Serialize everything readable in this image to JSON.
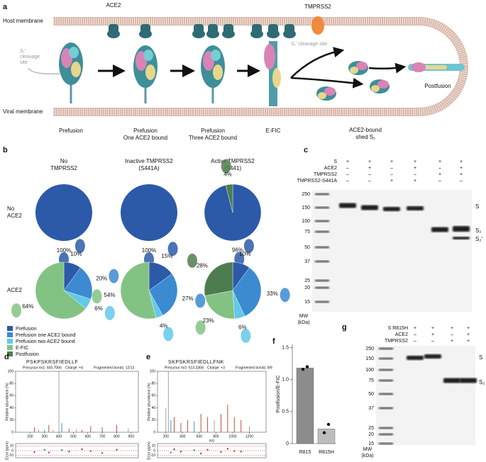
{
  "panel_a": {
    "letter": "a",
    "host_membrane": "Host membrane",
    "viral_membrane": "Viral membrane",
    "ace2": "ACE2",
    "tmprss2": "TMPRSS2",
    "cleavage_site_left": [
      "S₁′",
      "cleavage",
      "site"
    ],
    "cleavage_site_right": "S₁′ cleavage site",
    "states": [
      [
        "Prefusion"
      ],
      [
        "Prefusion",
        "One ACE2 bound"
      ],
      [
        "Prefusion",
        "Three ACE2 bound"
      ],
      [
        "E-FIC"
      ],
      [
        "ACE2-bound",
        "shed S₁"
      ],
      [
        "Postfusion"
      ]
    ]
  },
  "panel_b": {
    "letter": "b",
    "columns": [
      [
        "No",
        "TMPRSS2"
      ],
      [
        "Inactive TMPRSS2",
        "(S441A)"
      ],
      [
        "Active TMPRSS2",
        "(S441)"
      ]
    ],
    "rows": [
      [
        "No",
        "ACE2"
      ],
      [
        "ACE2"
      ]
    ],
    "legend": [
      {
        "name": "Prefusion",
        "color": "#2c5aa8"
      },
      {
        "name": "Prefusion one ACE2 bound",
        "color": "#3c8ad0"
      },
      {
        "name": "Prefusion two ACE2 bound",
        "color": "#62c9ea"
      },
      {
        "name": "E-FIC",
        "color": "#82c383"
      },
      {
        "name": "Postfusion",
        "color": "#4d7d4f"
      }
    ],
    "pies": [
      [
        {
          "values": [
            100,
            null,
            null,
            null,
            null
          ],
          "value_labels": [
            "100%",
            null,
            null,
            null,
            null
          ]
        },
        {
          "values": [
            100,
            null,
            null,
            null,
            null
          ],
          "value_labels": [
            "100%",
            null,
            null,
            null,
            null
          ]
        },
        {
          "values": [
            96,
            null,
            null,
            null,
            4
          ],
          "value_labels": [
            "96%",
            null,
            null,
            null,
            "4%"
          ]
        }
      ],
      [
        {
          "values": [
            10,
            20,
            6,
            64,
            null
          ],
          "value_labels": [
            "10%",
            "20%",
            "6%",
            "64%",
            null
          ]
        },
        {
          "values": [
            15,
            27,
            4,
            54,
            null
          ],
          "value_labels": [
            "15%",
            "27%",
            "4%",
            "54%",
            null
          ]
        },
        {
          "values": [
            10,
            33,
            6,
            23,
            28
          ],
          "value_labels": [
            "10%",
            "33%",
            "6%",
            "23%",
            "28%"
          ]
        }
      ]
    ]
  },
  "panel_c": {
    "letter": "c",
    "rows": [
      {
        "label": "S",
        "signs": [
          "+",
          "+",
          "+",
          "+",
          "+",
          "+"
        ]
      },
      {
        "label": "ACE2",
        "signs": [
          "–",
          "+",
          "–",
          "+",
          "–",
          "+"
        ]
      },
      {
        "label": "TMPRSS2",
        "signs": [
          "–",
          "–",
          "–",
          "–",
          "+",
          "+"
        ]
      },
      {
        "label": "TMPRSS2-S441A",
        "signs": [
          "–",
          "–",
          "+",
          "+",
          "–",
          "–"
        ]
      }
    ],
    "mw": [
      250,
      150,
      100,
      75,
      50,
      37,
      25,
      20,
      15
    ],
    "mw_label": [
      "MW",
      "(kDa)"
    ],
    "bands": [
      "S",
      "S₂",
      "S₂′"
    ]
  },
  "panel_d": {
    "letter": "d",
    "sequence": "PSKPSKRSFIEDLLF",
    "precursor": "Precursor m/z: 600.7066",
    "charge": "Charge: +4",
    "bonds": "Fragmented bonds: 12/13",
    "y_label": "Relative abundance (%)",
    "err_label": "Error (ppm)",
    "xlim": [
      100,
      950
    ],
    "xticks": [
      200,
      300,
      400,
      500,
      600,
      700,
      800,
      900
    ],
    "ylim": [
      0,
      100
    ],
    "yticks": [
      0,
      20,
      40,
      60,
      80,
      100
    ],
    "err_ylim": [
      -15,
      15
    ],
    "err_yticks": [
      10,
      0,
      -10
    ],
    "peaks_x": [
      230,
      260,
      300,
      330,
      360,
      400,
      420,
      470,
      520,
      560,
      620,
      700,
      800,
      880
    ],
    "peaks_y": [
      8,
      5,
      4,
      12,
      4,
      100,
      15,
      6,
      5,
      4,
      10,
      8,
      12,
      6
    ],
    "peak_colors": [
      "#c0392b",
      "#999",
      "#2e86c1",
      "#c0392b",
      "#999",
      "#999",
      "#2e86c1",
      "#c0392b",
      "#999",
      "#c0392b",
      "#c0392b",
      "#c0392b",
      "#c0392b",
      "#999"
    ],
    "err_x": [
      230,
      300,
      330,
      420,
      470,
      560,
      620,
      700,
      800
    ],
    "err_y": [
      -3,
      2,
      -4,
      1,
      -2,
      3,
      -1,
      -5,
      2
    ]
  },
  "panel_e": {
    "letter": "e",
    "sequence": "SKPSKRSFIEDLLFNK",
    "precursor": "Precursor m/z: 613.3368",
    "charge": "Charge: +3",
    "bonds": "Fragmented bonds: 9/9",
    "y_label": "Relative abundance (%)",
    "err_label": "Error (ppm)",
    "x_label": "m/z",
    "xlim": [
      100,
      1400
    ],
    "xticks": [
      200,
      400,
      600,
      800,
      1000,
      1200
    ],
    "ylim": [
      0,
      100
    ],
    "yticks": [
      0,
      20,
      40,
      60,
      80,
      100
    ],
    "err_ylim": [
      -15,
      15
    ],
    "err_yticks": [
      10,
      0,
      -10
    ],
    "peaks_x": [
      200,
      230,
      260,
      300,
      380,
      460,
      540,
      620,
      700,
      780,
      860,
      940,
      1020,
      1100,
      1200
    ],
    "peaks_y": [
      40,
      100,
      20,
      25,
      15,
      20,
      18,
      30,
      25,
      20,
      30,
      45,
      25,
      20,
      10
    ],
    "peak_colors": [
      "#999",
      "#999",
      "#2e86c1",
      "#c0392b",
      "#c0392b",
      "#c0392b",
      "#2e86c1",
      "#c0392b",
      "#c0392b",
      "#999",
      "#c0392b",
      "#c0392b",
      "#c0392b",
      "#c0392b",
      "#999"
    ],
    "err_x": [
      260,
      300,
      380,
      540,
      620,
      700,
      860,
      940,
      1020,
      1100
    ],
    "err_y": [
      -4,
      3,
      -2,
      1,
      -6,
      2,
      -3,
      4,
      -1,
      -2
    ]
  },
  "panel_f": {
    "type": "bar",
    "letter": "f",
    "y_label": "Postfusion/E-FIC",
    "categories": [
      "R815",
      "R815H"
    ],
    "values": [
      1.18,
      0.23
    ],
    "colors": [
      "#8c8c8c",
      "#bdbdbd"
    ],
    "points": [
      [
        1.16,
        1.2
      ],
      [
        0.17,
        0.3
      ]
    ],
    "ylim": [
      0,
      1.55
    ],
    "yticks": [
      0,
      0.5,
      {
        "value": 1,
        "label": "1.0"
      },
      1.5
    ]
  },
  "panel_g": {
    "letter": "g",
    "rows": [
      {
        "label": "S R815H",
        "signs": [
          "+",
          "+",
          "+",
          "+"
        ]
      },
      {
        "label": "ACE2",
        "signs": [
          "–",
          "+",
          "–",
          "+"
        ]
      },
      {
        "label": "TMPRSS2",
        "signs": [
          "–",
          "–",
          "+",
          "+"
        ]
      }
    ],
    "mw": [
      250,
      150,
      100,
      75,
      50,
      37,
      25,
      20,
      15
    ],
    "mw_label": [
      "MW",
      "(kDa)"
    ],
    "bands": [
      "S",
      "S₂"
    ]
  }
}
